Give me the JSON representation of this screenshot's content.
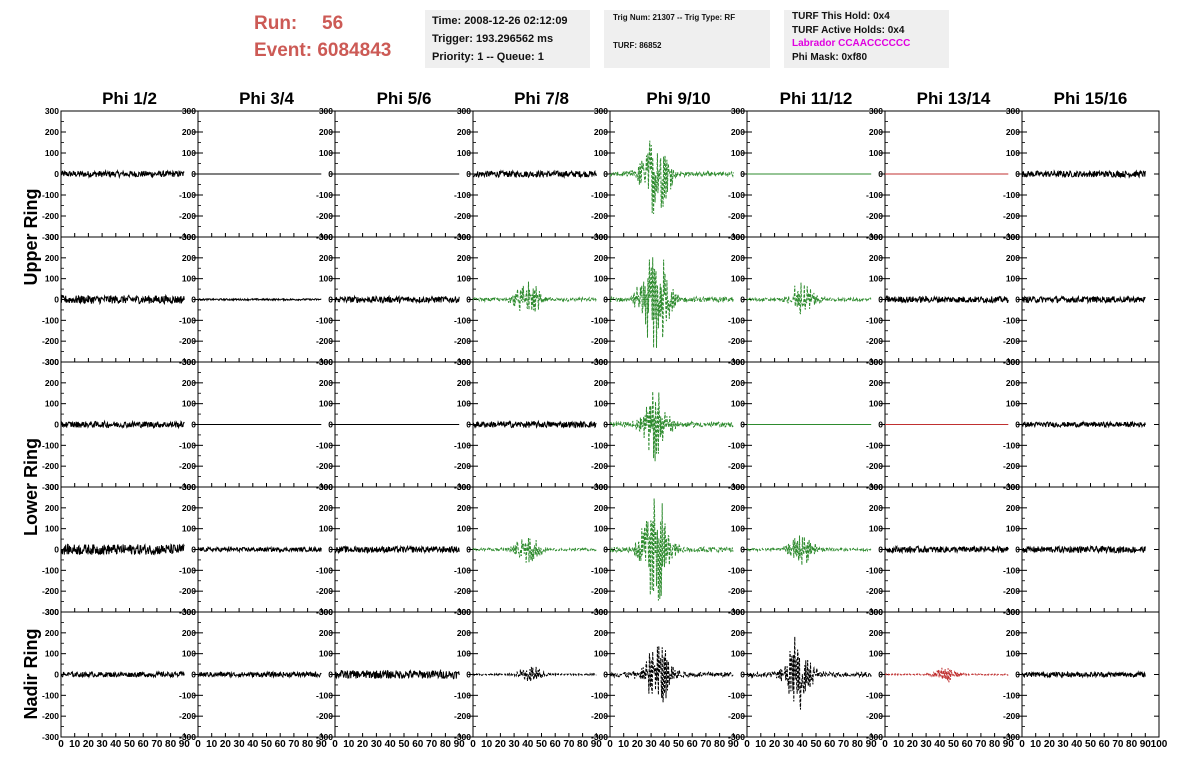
{
  "header": {
    "run_label": "Run:",
    "run_value": "56",
    "event_label": "Event:",
    "event_value": "6084843",
    "time": "Time: 2008-12-26 02:12:09",
    "trigger": "Trigger: 193.296562 ms",
    "priority": "Priority: 1 -- Queue: 1",
    "trig_num": "Trig Num: 21307 -- Trig Type: RF",
    "turf": "TURF: 86852",
    "turf_hold": "TURF This Hold: 0x4",
    "turf_active": "TURF Active Holds: 0x4",
    "labrador": "Labrador CCAACCCCCC",
    "phi_mask": "Phi Mask: 0xf80"
  },
  "chart_data": {
    "type": "line",
    "phi_columns": [
      "Phi 1/2",
      "Phi 3/4",
      "Phi 5/6",
      "Phi 7/8",
      "Phi 9/10",
      "Phi 11/12",
      "Phi 13/14",
      "Phi 15/16"
    ],
    "ring_labels": [
      "Upper Ring",
      "Lower Ring",
      "Nadir Ring"
    ],
    "ylim": [
      -300,
      300
    ],
    "xlim": [
      0,
      100
    ],
    "y_ticks": [
      300,
      200,
      100,
      0,
      -100,
      -200,
      -300
    ],
    "x_ticks": [
      0,
      10,
      20,
      30,
      40,
      50,
      60,
      70,
      80,
      90,
      100
    ],
    "colors": {
      "black": "#000000",
      "green": "#2e8b2e",
      "red": "#c03030"
    },
    "panels": [
      [
        {
          "amp": 15,
          "style": "noise",
          "color": "black"
        },
        {
          "amp": 0,
          "style": "flat",
          "color": "black"
        },
        {
          "amp": 0,
          "style": "flat",
          "color": "black"
        },
        {
          "amp": 15,
          "style": "noise",
          "color": "black"
        },
        {
          "amp": 190,
          "style": "pulse",
          "color": "green",
          "center": 33
        },
        {
          "amp": 0,
          "style": "flat",
          "color": "green"
        },
        {
          "amp": 0,
          "style": "flat",
          "color": "red"
        },
        {
          "amp": 15,
          "style": "noise",
          "color": "black"
        }
      ],
      [
        {
          "amp": 20,
          "style": "noise",
          "color": "black"
        },
        {
          "amp": 4,
          "style": "noise",
          "color": "black"
        },
        {
          "amp": 15,
          "style": "noise",
          "color": "black"
        },
        {
          "amp": 80,
          "style": "pulse",
          "color": "green",
          "center": 40
        },
        {
          "amp": 260,
          "style": "pulse",
          "color": "green",
          "center": 33
        },
        {
          "amp": 70,
          "style": "pulse",
          "color": "green",
          "center": 40
        },
        {
          "amp": 15,
          "style": "noise",
          "color": "black"
        },
        {
          "amp": 15,
          "style": "noise",
          "color": "black"
        }
      ],
      [
        {
          "amp": 15,
          "style": "noise",
          "color": "black"
        },
        {
          "amp": 0,
          "style": "flat",
          "color": "black"
        },
        {
          "amp": 0,
          "style": "flat",
          "color": "black"
        },
        {
          "amp": 15,
          "style": "noise",
          "color": "black"
        },
        {
          "amp": 140,
          "style": "pulse",
          "color": "green",
          "center": 33
        },
        {
          "amp": 0,
          "style": "flat",
          "color": "green"
        },
        {
          "amp": 0,
          "style": "flat",
          "color": "red"
        },
        {
          "amp": 12,
          "style": "noise",
          "color": "black"
        }
      ],
      [
        {
          "amp": 25,
          "style": "noise",
          "color": "black"
        },
        {
          "amp": 10,
          "style": "noise",
          "color": "black"
        },
        {
          "amp": 15,
          "style": "noise",
          "color": "black"
        },
        {
          "amp": 60,
          "style": "pulse",
          "color": "green",
          "center": 40
        },
        {
          "amp": 240,
          "style": "pulse",
          "color": "green",
          "center": 33
        },
        {
          "amp": 60,
          "style": "pulse",
          "color": "green",
          "center": 40
        },
        {
          "amp": 15,
          "style": "noise",
          "color": "black"
        },
        {
          "amp": 15,
          "style": "noise",
          "color": "black"
        }
      ],
      [
        {
          "amp": 12,
          "style": "noise",
          "color": "black"
        },
        {
          "amp": 12,
          "style": "noise",
          "color": "black"
        },
        {
          "amp": 20,
          "style": "noise",
          "color": "black"
        },
        {
          "amp": 35,
          "style": "pulse",
          "color": "black",
          "center": 42
        },
        {
          "amp": 150,
          "style": "pulse",
          "color": "black",
          "center": 35
        },
        {
          "amp": 150,
          "style": "pulse",
          "color": "black",
          "center": 37
        },
        {
          "amp": 30,
          "style": "pulse",
          "color": "red",
          "center": 45
        },
        {
          "amp": 12,
          "style": "noise",
          "color": "black"
        }
      ]
    ]
  }
}
